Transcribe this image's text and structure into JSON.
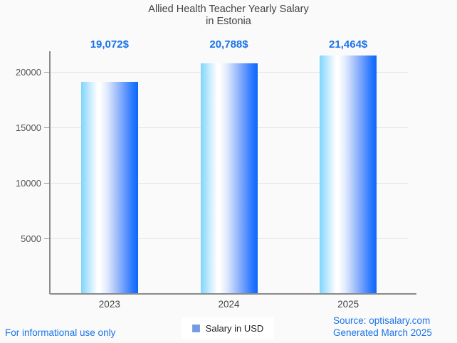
{
  "title": {
    "line1": "Allied Health Teacher Yearly Salary",
    "line2": "in Estonia"
  },
  "chart_data": {
    "type": "bar",
    "title": "Allied Health Teacher Yearly Salary in Estonia",
    "categories": [
      "2023",
      "2024",
      "2025"
    ],
    "values": [
      19072,
      20788,
      21464
    ],
    "value_labels": [
      "19,072$",
      "20,788$",
      "21,464$"
    ],
    "xlabel": "",
    "ylabel": "",
    "ylim": [
      0,
      21860
    ],
    "yticks": [
      5000,
      10000,
      15000,
      20000
    ],
    "grid": true,
    "legend_entries": [
      "Salary in USD"
    ],
    "legend_position": "bottom"
  },
  "legend": {
    "label": "Salary in USD",
    "marker_color": "#6c9bef"
  },
  "footer": {
    "disclaimer": "For informational use only",
    "source": "Source: optisalary.com",
    "generated": "Generated March 2025"
  },
  "colors": {
    "background": "#fafafa",
    "accent_blue": "#1a73e8",
    "bar_gradient_left": "#7ed5fc",
    "bar_gradient_mid": "#ffffff",
    "bar_gradient_right": "#0b66fb",
    "axis": "#8a8a8a",
    "gridline": "#e4e4e4",
    "title_text": "#424242"
  }
}
